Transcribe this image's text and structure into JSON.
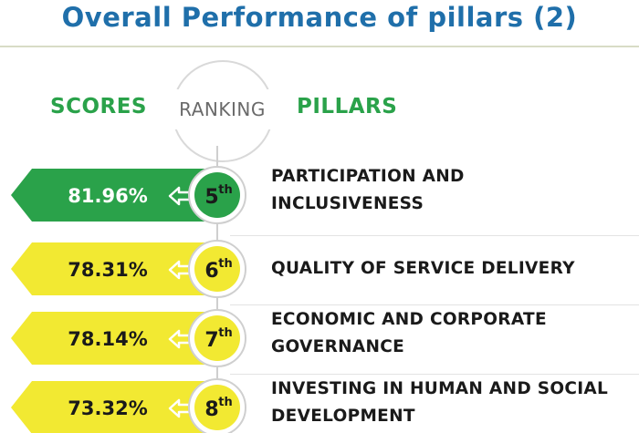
{
  "title": "Overall Performance of pillars (2)",
  "headers": {
    "scores": "SCORES",
    "ranking": "RANKING",
    "pillars": "PILLARS"
  },
  "colors": {
    "title": "#1f6faa",
    "header_green": "#2aa24a",
    "top_row": "#2aa24a",
    "other_rows": "#f2e932"
  },
  "chart_data": {
    "type": "table",
    "title": "Overall Performance of pillars (2)",
    "columns": [
      "SCORES",
      "RANKING",
      "PILLARS"
    ],
    "rows": [
      {
        "score": "81.96%",
        "rank": "5",
        "rank_suffix": "th",
        "pillar_line1": "PARTICIPATION AND",
        "pillar_line2": "INCLUSIVENESS",
        "highlight": true
      },
      {
        "score": "78.31%",
        "rank": "6",
        "rank_suffix": "th",
        "pillar_line1": "QUALITY OF SERVICE DELIVERY",
        "pillar_line2": "",
        "highlight": false
      },
      {
        "score": "78.14%",
        "rank": "7",
        "rank_suffix": "th",
        "pillar_line1": "ECONOMIC AND CORPORATE",
        "pillar_line2": "GOVERNANCE",
        "highlight": false
      },
      {
        "score": "73.32%",
        "rank": "8",
        "rank_suffix": "th",
        "pillar_line1": "INVESTING IN HUMAN AND SOCIAL",
        "pillar_line2": "DEVELOPMENT",
        "highlight": false
      }
    ]
  }
}
